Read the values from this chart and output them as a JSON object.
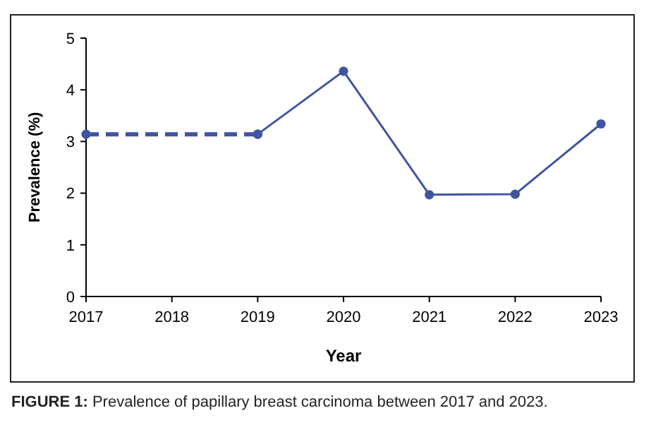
{
  "chart_data": {
    "type": "line",
    "xlabel": "Year",
    "ylabel": "Prevalence (%)",
    "xlim": [
      2017,
      2023
    ],
    "xticks": [
      2017,
      2018,
      2019,
      2020,
      2021,
      2022,
      2023
    ],
    "ylim": [
      0,
      5
    ],
    "yticks": [
      0,
      1,
      2,
      3,
      4,
      5
    ],
    "series": [
      {
        "color": "#3f55a0",
        "x": [
          2017,
          2019
        ],
        "values": [
          3.14,
          3.14
        ],
        "line_style": "dashed",
        "marker": "circle"
      },
      {
        "color": "#3f55a0",
        "x": [
          2019,
          2020,
          2021,
          2022,
          2023
        ],
        "values": [
          3.14,
          4.36,
          1.97,
          1.98,
          3.34
        ],
        "line_style": "solid",
        "marker": "circle"
      }
    ],
    "grid": false,
    "annotations": [
      "FIGURE 1: Prevalence of papillary breast carcinoma between 2017 and 2023."
    ]
  }
}
